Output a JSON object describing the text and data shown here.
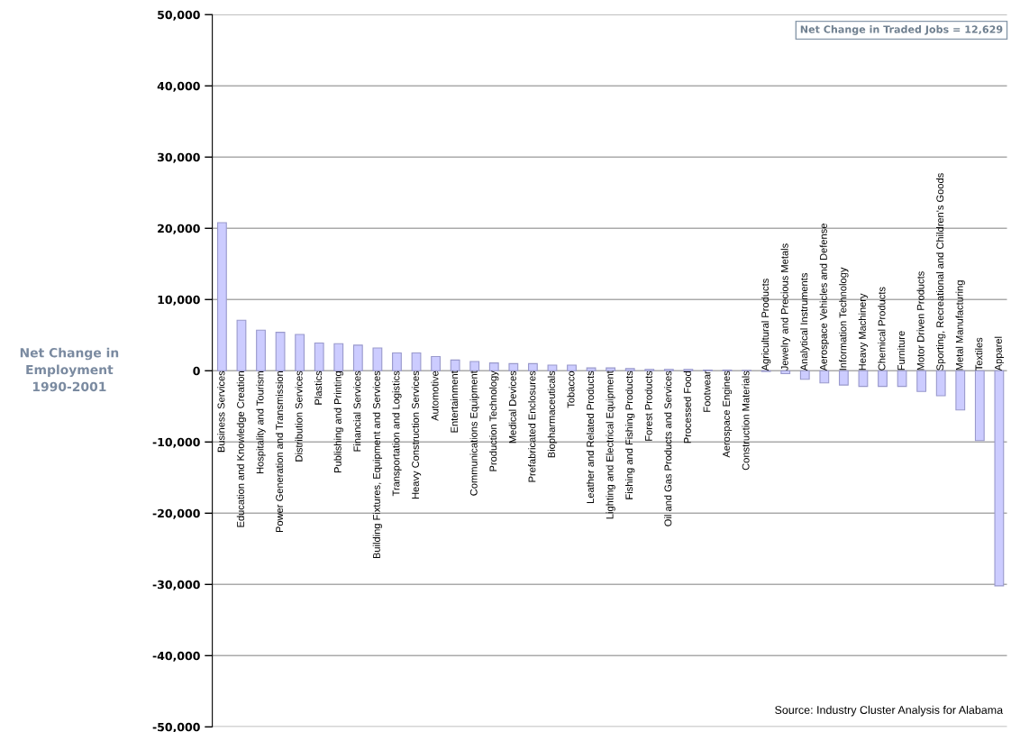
{
  "chart_data": {
    "type": "bar",
    "ylabel": "Net Change in\nEmployment\n1990-2001",
    "categories": [
      "Business Services",
      "Education and Knowledge Creation",
      "Hospitality and Tourism",
      "Power Generation and Transmission",
      "Distribution Services",
      "Plastics",
      "Publishing and Printing",
      "Financial Services",
      "Building Fixtures, Equipment and Services",
      "Transportation and Logistics",
      "Heavy Construction Services",
      "Automotive",
      "Entertainment",
      "Communications Equipment",
      "Production Technology",
      "Medical Devices",
      "Prefabricated Enclosures",
      "Biopharmaceuticals",
      "Tobacco",
      "Leather and Related Products",
      "Lighting and Electrical Equipment",
      "Fishing and Fishing Products",
      "Forest Products",
      "Oil and Gas Products and Services",
      "Processed Food",
      "Footwear",
      "Aerospace Engines",
      "Construction Materials",
      "Agricultural Products",
      "Jewelry and Precious Metals",
      "Analytical Instruments",
      "Aerospace Vehicles and Defense",
      "Information Technology",
      "Heavy Machinery",
      "Chemical Products",
      "Furniture",
      "Motor Driven Products",
      "Sporting, Recreational and Children's Goods",
      "Metal Manufacturing",
      "Textiles",
      "Apparel"
    ],
    "values": [
      20800,
      7100,
      5700,
      5400,
      5100,
      3900,
      3800,
      3600,
      3200,
      2500,
      2500,
      2000,
      1500,
      1300,
      1100,
      1000,
      1000,
      800,
      800,
      400,
      400,
      300,
      200,
      200,
      200,
      100,
      100,
      50,
      -100,
      -400,
      -1200,
      -1700,
      -2000,
      -2200,
      -2200,
      -2200,
      -2900,
      -3500,
      -5500,
      -9800,
      -30200
    ],
    "color": "#ccccff",
    "ylim": [
      -50000,
      50000
    ],
    "yticks": [
      {
        "value": -50000,
        "label": "-50,000"
      },
      {
        "value": -40000,
        "label": "-40,000"
      },
      {
        "value": -30000,
        "label": "-30,000"
      },
      {
        "value": -20000,
        "label": "-20,000"
      },
      {
        "value": -10000,
        "label": "-10,000"
      },
      0,
      {
        "value": 10000,
        "label": "10,000"
      },
      {
        "value": 20000,
        "label": "20,000"
      },
      {
        "value": 30000,
        "label": "30,000"
      },
      {
        "value": 40000,
        "label": "40,000"
      },
      {
        "value": 50000,
        "label": "50,000"
      }
    ],
    "grid": "y",
    "legend": false,
    "annotations": [
      "Net Change in Traded Jobs = 12,629",
      "Source: Industry Cluster Analysis for Alabama"
    ]
  }
}
